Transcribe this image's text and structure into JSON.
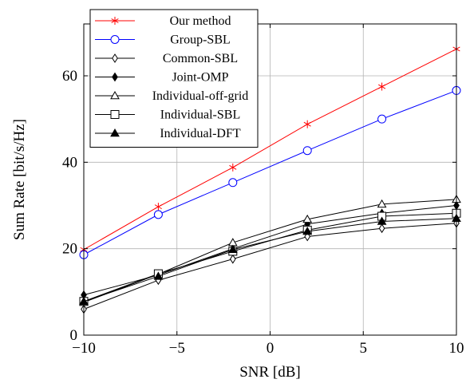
{
  "chart_data": {
    "type": "line",
    "xlabel": "SNR [dB]",
    "ylabel": "Sum Rate [bit/s/Hz]",
    "xlim": [
      -10,
      10
    ],
    "ylim": [
      0,
      72
    ],
    "x_ticks": [
      -10,
      -5,
      0,
      5,
      10
    ],
    "x_tick_labels": [
      "−10",
      "−5",
      "0",
      "5",
      "10"
    ],
    "y_ticks": [
      0,
      20,
      40,
      60
    ],
    "y_tick_labels": [
      "0",
      "20",
      "40",
      "60"
    ],
    "grid": true,
    "legend_position": "top-left",
    "x": [
      -10,
      -6,
      -2,
      2,
      6,
      10
    ],
    "series": [
      {
        "name": "Our method",
        "color": "#ff0000",
        "marker": "asterisk",
        "values": [
          19.8,
          29.7,
          38.8,
          48.8,
          57.5,
          66.2
        ]
      },
      {
        "name": "Group-SBL",
        "color": "#0000ff",
        "marker": "circle",
        "values": [
          18.6,
          27.9,
          35.3,
          42.7,
          50.0,
          56.6
        ]
      },
      {
        "name": "Common-SBL",
        "color": "#000000",
        "marker": "diamond-open",
        "values": [
          6.0,
          12.7,
          17.6,
          22.8,
          24.7,
          25.9
        ]
      },
      {
        "name": "Joint-OMP",
        "color": "#000000",
        "marker": "diamond-filled",
        "values": [
          9.3,
          13.9,
          20.0,
          25.7,
          28.2,
          30.0
        ]
      },
      {
        "name": "Individual-off-grid",
        "color": "#000000",
        "marker": "triangle-open",
        "values": [
          7.6,
          14.1,
          21.4,
          26.8,
          30.3,
          31.4
        ]
      },
      {
        "name": "Individual-SBL",
        "color": "#000000",
        "marker": "square-open",
        "values": [
          7.8,
          14.2,
          19.4,
          24.3,
          27.5,
          28.2
        ]
      },
      {
        "name": "Individual-DFT",
        "color": "#000000",
        "marker": "triangle-filled",
        "values": [
          7.8,
          13.6,
          19.8,
          24.0,
          26.3,
          27.0
        ]
      }
    ]
  }
}
